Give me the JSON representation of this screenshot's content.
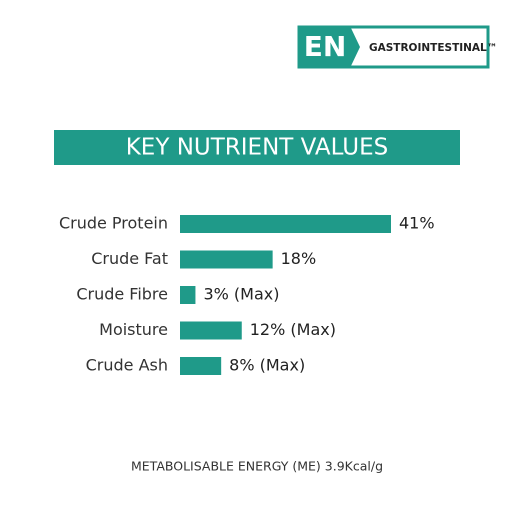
{
  "logo": {
    "badge": "EN",
    "name": "GASTROINTESTINAL™"
  },
  "chart_data": {
    "type": "bar",
    "orientation": "horizontal",
    "title": "KEY NUTRIENT VALUES",
    "categories": [
      "Crude Protein",
      "Crude Fat",
      "Crude Fibre",
      "Moisture",
      "Crude Ash"
    ],
    "values": [
      41,
      18,
      3,
      12,
      8
    ],
    "value_labels": [
      "41%",
      "18%",
      "3% (Max)",
      "12% (Max)",
      "8% (Max)"
    ],
    "color": "#1f9a89"
  },
  "footnote": "METABOLISABLE ENERGY (ME) 3.9Kcal/g"
}
